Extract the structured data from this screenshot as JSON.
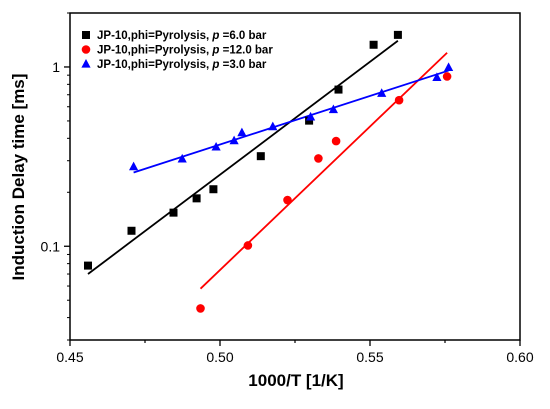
{
  "chart_data": {
    "type": "scatter",
    "xlabel": "1000/T [1/K]",
    "ylabel": "Induction Delay time [ms]",
    "xlim": [
      0.45,
      0.6
    ],
    "ylim": [
      0.03,
      2.0
    ],
    "yscale": "log",
    "xticks": [
      "0.45",
      "0.50",
      "0.55",
      "0.60"
    ],
    "yticks": [
      "0.1",
      "1"
    ],
    "grid": false,
    "legend_position": "top-left",
    "series": [
      {
        "name": "JP-10,phi=Pyrolysis, p =6.0 bar",
        "legend": {
          "prefix": "JP-10,phi=Pyrolysis, ",
          "var": "p",
          "suffix": " =6.0 bar"
        },
        "marker": "square",
        "color": "#000000",
        "x": [
          0.456,
          0.4705,
          0.4845,
          0.4922,
          0.4978,
          0.5136,
          0.5297,
          0.5395,
          0.5512,
          0.5593
        ],
        "y": [
          0.078,
          0.122,
          0.154,
          0.185,
          0.208,
          0.318,
          0.502,
          0.748,
          1.33,
          1.51
        ],
        "fit": {
          "x": [
            0.456,
            0.5593
          ],
          "y": [
            0.07,
            1.4
          ]
        }
      },
      {
        "name": "JP-10,phi=Pyrolysis, p =12.0 bar",
        "legend": {
          "prefix": "JP-10,phi=Pyrolysis, ",
          "var": "p",
          "suffix": " =12.0 bar"
        },
        "marker": "circle",
        "color": "#ff0000",
        "x": [
          0.4935,
          0.5093,
          0.5225,
          0.5328,
          0.5387,
          0.5597,
          0.5757
        ],
        "y": [
          0.045,
          0.101,
          0.181,
          0.309,
          0.386,
          0.653,
          0.885
        ],
        "fit": {
          "x": [
            0.4935,
            0.5757
          ],
          "y": [
            0.058,
            1.2
          ]
        }
      },
      {
        "name": "JP-10,phi=Pyrolysis, p =3.0 bar",
        "legend": {
          "prefix": "JP-10,phi=Pyrolysis, ",
          "var": "p",
          "suffix": " =3.0 bar"
        },
        "marker": "triangle",
        "color": "#0000ff",
        "x": [
          0.4712,
          0.4874,
          0.4987,
          0.5047,
          0.5073,
          0.5176,
          0.5302,
          0.5378,
          0.5539,
          0.5723,
          0.5762
        ],
        "y": [
          0.278,
          0.307,
          0.358,
          0.388,
          0.43,
          0.465,
          0.527,
          0.579,
          0.713,
          0.875,
          0.995
        ],
        "fit": {
          "x": [
            0.4712,
            0.5762
          ],
          "y": [
            0.258,
            0.955
          ]
        }
      }
    ]
  }
}
